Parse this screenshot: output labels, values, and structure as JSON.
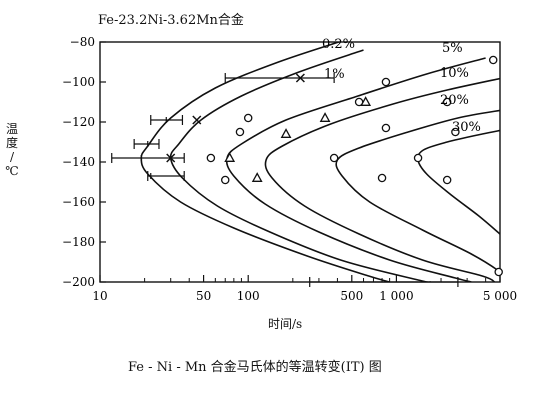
{
  "chart_data": {
    "type": "line",
    "title": "Fe-23.2Ni-3.62Mn合金",
    "caption": "Fe - Ni - Mn 合金马氏体的等温转变(IT) 图",
    "xlabel": "时间/s",
    "ylabel": "温度/℃",
    "xscale": "log",
    "xlim": [
      10,
      5000
    ],
    "ylim": [
      -200,
      -80
    ],
    "x_ticks": [
      {
        "v": 10,
        "label": "10"
      },
      {
        "v": 50,
        "label": "50"
      },
      {
        "v": 100,
        "label": "100"
      },
      {
        "v": 500,
        "label": "500"
      },
      {
        "v": 1000,
        "label": "1 000"
      },
      {
        "v": 5000,
        "label": "5 000"
      }
    ],
    "y_ticks": [
      {
        "v": -80,
        "label": "−80"
      },
      {
        "v": -100,
        "label": "−100"
      },
      {
        "v": -120,
        "label": "−120"
      },
      {
        "v": -140,
        "label": "−140"
      },
      {
        "v": -160,
        "label": "−160"
      },
      {
        "v": -180,
        "label": "−180"
      },
      {
        "v": -200,
        "label": "−200"
      }
    ],
    "series": [
      {
        "name": "0.2%",
        "curve": [
          [
            450,
            -79
          ],
          [
            160,
            -90
          ],
          [
            60,
            -103
          ],
          [
            30,
            -118
          ],
          [
            21,
            -132
          ],
          [
            19,
            -138
          ],
          [
            21,
            -146
          ],
          [
            35,
            -160
          ],
          [
            80,
            -173
          ],
          [
            250,
            -187
          ],
          [
            650,
            -197
          ],
          [
            900,
            -200
          ]
        ],
        "points": [
          [
            28,
            -119
          ],
          [
            21,
            -131
          ],
          [
            19,
            -138
          ],
          [
            22,
            -147
          ]
        ],
        "marker": "bar",
        "errors": [
          [
            -119,
            22,
            36
          ],
          [
            -131,
            17,
            25
          ],
          [
            -138,
            12,
            37
          ],
          [
            -147,
            21,
            37
          ]
        ]
      },
      {
        "name": "1%",
        "curve": [
          [
            600,
            -84
          ],
          [
            220,
            -95
          ],
          [
            90,
            -107
          ],
          [
            48,
            -119
          ],
          [
            34,
            -131
          ],
          [
            30,
            -138
          ],
          [
            36,
            -148
          ],
          [
            62,
            -162
          ],
          [
            140,
            -175
          ],
          [
            420,
            -189
          ],
          [
            1400,
            -199
          ],
          [
            1700,
            -200
          ]
        ],
        "points": [
          [
            225,
            -98
          ],
          [
            45,
            -119
          ],
          [
            30,
            -138
          ]
        ],
        "marker": "x",
        "errors": [
          [
            -98,
            70,
            380
          ]
        ]
      },
      {
        "name": "5%",
        "curve": [
          [
            4000,
            -88
          ],
          [
            1600,
            -96
          ],
          [
            550,
            -107
          ],
          [
            180,
            -119
          ],
          [
            90,
            -131
          ],
          [
            72,
            -138
          ],
          [
            80,
            -147
          ],
          [
            130,
            -161
          ],
          [
            300,
            -175
          ],
          [
            900,
            -189
          ],
          [
            2500,
            -198
          ],
          [
            3200,
            -200
          ]
        ],
        "points": [
          [
            4500,
            -89
          ],
          [
            850,
            -100
          ],
          [
            560,
            -110
          ],
          [
            100,
            -118
          ],
          [
            88,
            -125
          ],
          [
            56,
            -138
          ],
          [
            70,
            -149
          ]
        ],
        "marker": "circle",
        "errors": [
          [
            -200,
            260,
            2600
          ]
        ]
      },
      {
        "name": "10%",
        "curve": [
          [
            5200,
            -98
          ],
          [
            2200,
            -104
          ],
          [
            950,
            -111
          ],
          [
            360,
            -121
          ],
          [
            170,
            -132
          ],
          [
            132,
            -139
          ],
          [
            145,
            -148
          ],
          [
            240,
            -162
          ],
          [
            560,
            -176
          ],
          [
            1500,
            -189
          ],
          [
            3800,
            -197
          ],
          [
            4600,
            -200
          ]
        ],
        "points": [
          [
            620,
            -110
          ],
          [
            330,
            -118
          ],
          [
            180,
            -126
          ],
          [
            75,
            -138
          ],
          [
            115,
            -148
          ]
        ],
        "marker": "triangle"
      },
      {
        "name": "20%",
        "curve": [
          [
            5200,
            -114
          ],
          [
            2600,
            -118
          ],
          [
            1200,
            -125
          ],
          [
            560,
            -133
          ],
          [
            400,
            -139
          ],
          [
            430,
            -147
          ],
          [
            660,
            -160
          ],
          [
            1500,
            -174
          ],
          [
            3200,
            -186
          ],
          [
            4800,
            -194
          ],
          [
            5200,
            -197
          ]
        ],
        "points": [
          [
            2200,
            -110
          ],
          [
            850,
            -123
          ],
          [
            380,
            -138
          ],
          [
            800,
            -148
          ],
          [
            4900,
            -195
          ]
        ],
        "marker": "circle"
      },
      {
        "name": "30%",
        "curve": [
          [
            5200,
            -124
          ],
          [
            3800,
            -126
          ],
          [
            2200,
            -130
          ],
          [
            1520,
            -134
          ],
          [
            1400,
            -139
          ],
          [
            1600,
            -146
          ],
          [
            2300,
            -156
          ],
          [
            3600,
            -167
          ],
          [
            5000,
            -176
          ]
        ],
        "points": [
          [
            2500,
            -125
          ],
          [
            1400,
            -138
          ],
          [
            2200,
            -149
          ]
        ],
        "marker": "circle"
      }
    ],
    "grid": false,
    "legend": "none"
  }
}
